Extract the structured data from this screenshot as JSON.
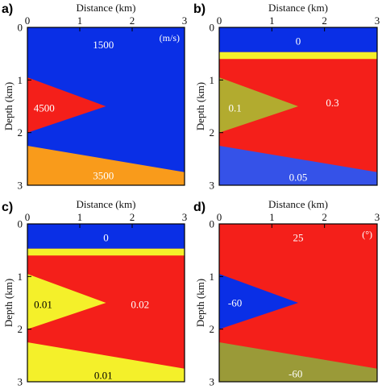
{
  "figure": {
    "x_axis_title": "Distance (km)",
    "y_axis_title": "Depth (km)",
    "x_ticks": [
      "0",
      "1",
      "2",
      "3"
    ],
    "y_ticks": [
      "0",
      "1",
      "2",
      "3"
    ],
    "x_range_km": [
      0,
      3
    ],
    "y_range_km": [
      0,
      3
    ],
    "colors": {
      "blue": "#0a2fe6",
      "red": "#f41f1a",
      "orange": "#f99b1b",
      "olive": "#b2ab2f",
      "yellow": "#f4f02a",
      "blue_light": "#3552e8",
      "olive_dark": "#9a9a38"
    }
  },
  "panels": [
    {
      "letter": "a)",
      "unit": "(m/s)",
      "layers": [
        {
          "color": "blue",
          "polygon_km": [
            [
              0,
              0
            ],
            [
              3,
              0
            ],
            [
              3,
              3
            ],
            [
              0,
              3
            ]
          ]
        },
        {
          "color": "red",
          "polygon_km": [
            [
              0,
              0.95
            ],
            [
              1.5,
              1.5
            ],
            [
              0,
              2.0
            ]
          ]
        },
        {
          "color": "orange",
          "polygon_km": [
            [
              0,
              2.25
            ],
            [
              3,
              2.75
            ],
            [
              3,
              3
            ],
            [
              0,
              3
            ]
          ]
        }
      ],
      "labels": [
        {
          "text": "1500",
          "at_km": [
            1.45,
            0.33
          ],
          "color": "#ffffff"
        },
        {
          "text": "4500",
          "at_km": [
            0.32,
            1.53
          ],
          "color": "#ffffff"
        },
        {
          "text": "3500",
          "at_km": [
            1.45,
            2.82
          ],
          "color": "#ffffff"
        }
      ]
    },
    {
      "letter": "b)",
      "unit": "",
      "layers": [
        {
          "color": "red",
          "polygon_km": [
            [
              0,
              0
            ],
            [
              3,
              0
            ],
            [
              3,
              3
            ],
            [
              0,
              3
            ]
          ]
        },
        {
          "color": "blue",
          "polygon_km": [
            [
              0,
              0
            ],
            [
              3,
              0
            ],
            [
              3,
              0.47
            ],
            [
              0,
              0.47
            ]
          ]
        },
        {
          "color": "yellow",
          "polygon_km": [
            [
              0,
              0.47
            ],
            [
              3,
              0.47
            ],
            [
              3,
              0.6
            ],
            [
              0,
              0.6
            ]
          ]
        },
        {
          "color": "olive",
          "polygon_km": [
            [
              0,
              0.95
            ],
            [
              1.5,
              1.5
            ],
            [
              0,
              2.0
            ]
          ]
        },
        {
          "color": "blue_light",
          "polygon_km": [
            [
              0,
              2.25
            ],
            [
              3,
              2.75
            ],
            [
              3,
              3
            ],
            [
              0,
              3
            ]
          ]
        }
      ],
      "labels": [
        {
          "text": "0",
          "at_km": [
            1.5,
            0.26
          ],
          "color": "#ffffff"
        },
        {
          "text": "0.1",
          "at_km": [
            0.3,
            1.53
          ],
          "color": "#ffffff"
        },
        {
          "text": "0.3",
          "at_km": [
            2.15,
            1.43
          ],
          "color": "#ffffff"
        },
        {
          "text": "0.05",
          "at_km": [
            1.5,
            2.85
          ],
          "color": "#ffffff"
        }
      ]
    },
    {
      "letter": "c)",
      "unit": "",
      "layers": [
        {
          "color": "red",
          "polygon_km": [
            [
              0,
              0
            ],
            [
              3,
              0
            ],
            [
              3,
              3
            ],
            [
              0,
              3
            ]
          ]
        },
        {
          "color": "blue",
          "polygon_km": [
            [
              0,
              0
            ],
            [
              3,
              0
            ],
            [
              3,
              0.47
            ],
            [
              0,
              0.47
            ]
          ]
        },
        {
          "color": "yellow",
          "polygon_km": [
            [
              0,
              0.47
            ],
            [
              3,
              0.47
            ],
            [
              3,
              0.6
            ],
            [
              0,
              0.6
            ]
          ]
        },
        {
          "color": "yellow",
          "polygon_km": [
            [
              0,
              0.95
            ],
            [
              1.5,
              1.5
            ],
            [
              0,
              2.0
            ]
          ]
        },
        {
          "color": "yellow",
          "polygon_km": [
            [
              0,
              2.25
            ],
            [
              3,
              2.75
            ],
            [
              3,
              3
            ],
            [
              0,
              3
            ]
          ]
        }
      ],
      "labels": [
        {
          "text": "0",
          "at_km": [
            1.5,
            0.26
          ],
          "color": "#ffffff"
        },
        {
          "text": "0.01",
          "at_km": [
            0.3,
            1.53
          ],
          "color": "#000000"
        },
        {
          "text": "0.02",
          "at_km": [
            2.15,
            1.53
          ],
          "color": "#ffffff"
        },
        {
          "text": "0.01",
          "at_km": [
            1.45,
            2.88
          ],
          "color": "#000000"
        }
      ]
    },
    {
      "letter": "d)",
      "unit": "(°)",
      "layers": [
        {
          "color": "red",
          "polygon_km": [
            [
              0,
              0
            ],
            [
              3,
              0
            ],
            [
              3,
              3
            ],
            [
              0,
              3
            ]
          ]
        },
        {
          "color": "blue",
          "polygon_km": [
            [
              0,
              0.95
            ],
            [
              1.5,
              1.5
            ],
            [
              0,
              2.0
            ]
          ]
        },
        {
          "color": "olive_dark",
          "polygon_km": [
            [
              0,
              2.25
            ],
            [
              3,
              2.75
            ],
            [
              3,
              3
            ],
            [
              0,
              3
            ]
          ]
        }
      ],
      "labels": [
        {
          "text": "25",
          "at_km": [
            1.5,
            0.26
          ],
          "color": "#ffffff"
        },
        {
          "text": "-60",
          "at_km": [
            0.3,
            1.5
          ],
          "color": "#ffffff"
        },
        {
          "text": "-60",
          "at_km": [
            1.45,
            2.85
          ],
          "color": "#ffffff"
        }
      ]
    }
  ]
}
